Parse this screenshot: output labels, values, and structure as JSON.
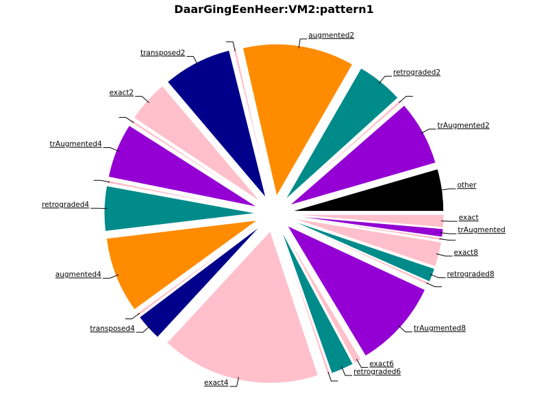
{
  "chart_data": {
    "type": "pie",
    "title": "DaarGingEenHeer:VM2:pattern1",
    "slices": [
      {
        "label": "other",
        "value": 4.6,
        "color": "#000000"
      },
      {
        "label": "trAugmented2",
        "value": 7.1,
        "color": "#9400d3"
      },
      {
        "label": "",
        "value": 0.3,
        "color": "#ffc0cb"
      },
      {
        "label": "retrograded2",
        "value": 5.1,
        "color": "#008b8b"
      },
      {
        "label": "augmented2",
        "value": 12.2,
        "color": "#ff8c00"
      },
      {
        "label": "",
        "value": 0.3,
        "color": "#ffc0cb"
      },
      {
        "label": "transposed2",
        "value": 7.5,
        "color": "#00008b"
      },
      {
        "label": "exact2",
        "value": 4.6,
        "color": "#ffc0cb"
      },
      {
        "label": "",
        "value": 0.3,
        "color": "#ffc0cb"
      },
      {
        "label": "trAugmented4",
        "value": 6.0,
        "color": "#9400d3"
      },
      {
        "label": "",
        "value": 0.3,
        "color": "#ffc0cb"
      },
      {
        "label": "retrograded4",
        "value": 4.9,
        "color": "#008b8b"
      },
      {
        "label": "augmented4",
        "value": 8.3,
        "color": "#ff8c00"
      },
      {
        "label": "",
        "value": 0.3,
        "color": "#ffc0cb"
      },
      {
        "label": "transposed4",
        "value": 2.9,
        "color": "#00008b"
      },
      {
        "label": "exact4",
        "value": 17.4,
        "color": "#ffc0cb"
      },
      {
        "label": "",
        "value": 0.3,
        "color": "#ffc0cb"
      },
      {
        "label": "retrograded6",
        "value": 2.5,
        "color": "#008b8b"
      },
      {
        "label": "exact6",
        "value": 0.8,
        "color": "#ffc0cb"
      },
      {
        "label": "trAugmented8",
        "value": 9.7,
        "color": "#9400d3"
      },
      {
        "label": "",
        "value": 0.3,
        "color": "#ffc0cb"
      },
      {
        "label": "retrograded8",
        "value": 1.5,
        "color": "#008b8b"
      },
      {
        "label": "exact8",
        "value": 2.7,
        "color": "#ffc0cb"
      },
      {
        "label": "",
        "value": 0.3,
        "color": "#ffc0cb"
      },
      {
        "label": "trAugmented",
        "value": 0.9,
        "color": "#9400d3"
      },
      {
        "label": "exact",
        "value": 1.4,
        "color": "#ffc0cb"
      }
    ]
  }
}
